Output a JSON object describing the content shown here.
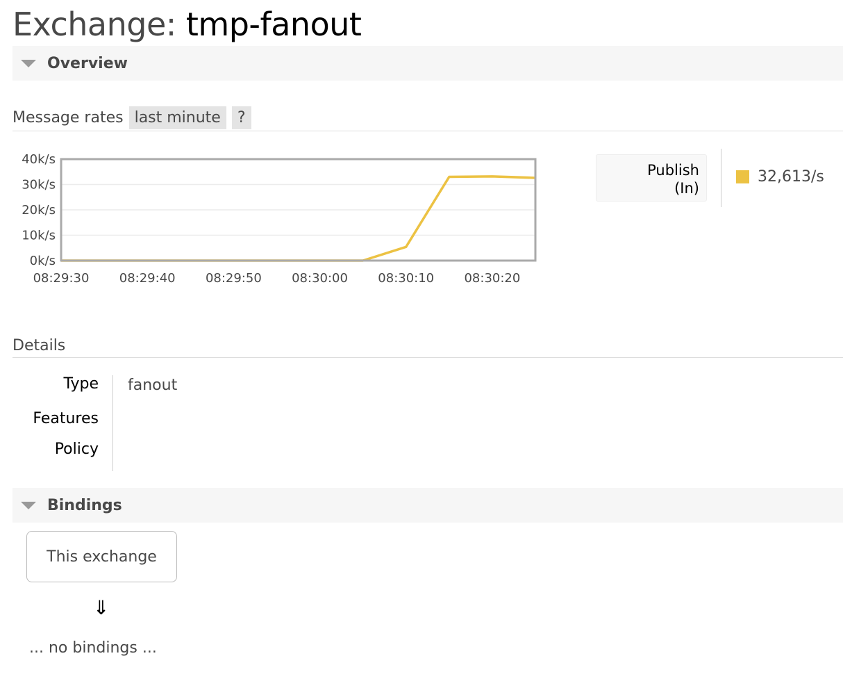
{
  "page": {
    "title_prefix": "Exchange:",
    "title_name": "tmp-fanout"
  },
  "overview": {
    "label": "Overview"
  },
  "message_rates": {
    "label": "Message rates",
    "range": "last minute",
    "help": "?"
  },
  "legend": {
    "series_label_line1": "Publish",
    "series_label_line2": "(In)",
    "value": "32,613/s",
    "color": "#ecc243"
  },
  "chart_data": {
    "type": "line",
    "x": [
      "08:29:30",
      "08:29:35",
      "08:29:40",
      "08:29:45",
      "08:29:50",
      "08:29:55",
      "08:30:00",
      "08:30:05",
      "08:30:10",
      "08:30:15",
      "08:30:20",
      "08:30:25"
    ],
    "series": [
      {
        "name": "Publish (In)",
        "values": [
          0,
          0,
          0,
          0,
          0,
          0,
          0,
          0,
          5400,
          33000,
          33200,
          32613
        ],
        "color": "#ecc243"
      }
    ],
    "x_ticks": [
      "08:29:30",
      "08:29:40",
      "08:29:50",
      "08:30:00",
      "08:30:10",
      "08:30:20"
    ],
    "y_ticks": [
      "0k/s",
      "10k/s",
      "20k/s",
      "30k/s",
      "40k/s"
    ],
    "ylim": [
      0,
      40000
    ],
    "grid": true
  },
  "details": {
    "label": "Details",
    "rows": [
      {
        "key": "Type",
        "value": "fanout"
      },
      {
        "key": "Features",
        "value": ""
      },
      {
        "key": "Policy",
        "value": ""
      }
    ]
  },
  "bindings": {
    "label": "Bindings",
    "this_exchange": "This exchange",
    "arrow": "⇓",
    "empty": "... no bindings ..."
  }
}
